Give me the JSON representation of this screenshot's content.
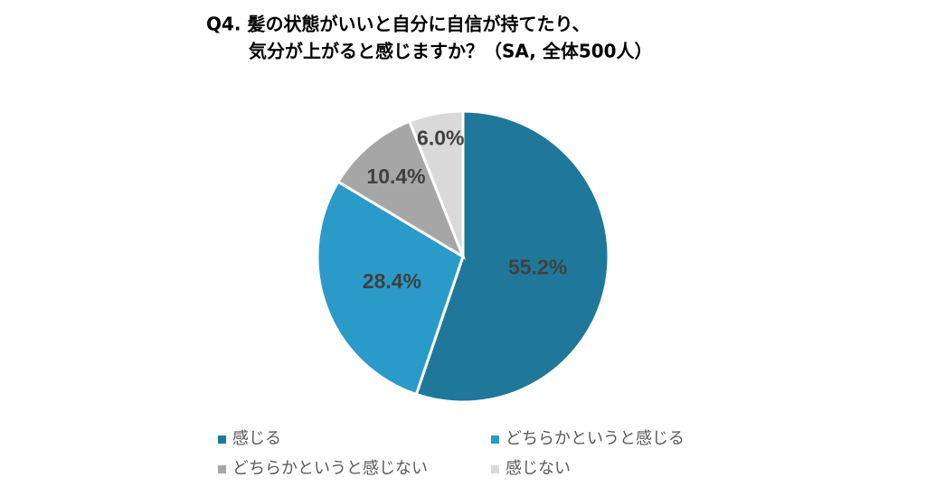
{
  "chart_data": {
    "type": "pie",
    "title": [
      "Q4. 髪の状態がいいと自分に自信が持てたり、",
      "気分が上がると感じますか？（SA, 全体500人）"
    ],
    "categories": [
      "感じる",
      "どちらかというと感じる",
      "どちらかというと感じない",
      "感じない"
    ],
    "values": [
      55.2,
      28.4,
      10.4,
      6.0
    ],
    "value_labels": [
      "55.2%",
      "28.4%",
      "10.4%",
      "6.0%"
    ],
    "colors": [
      "#1f7899",
      "#2a9bc8",
      "#a6a6a6",
      "#d9d9d9"
    ]
  }
}
